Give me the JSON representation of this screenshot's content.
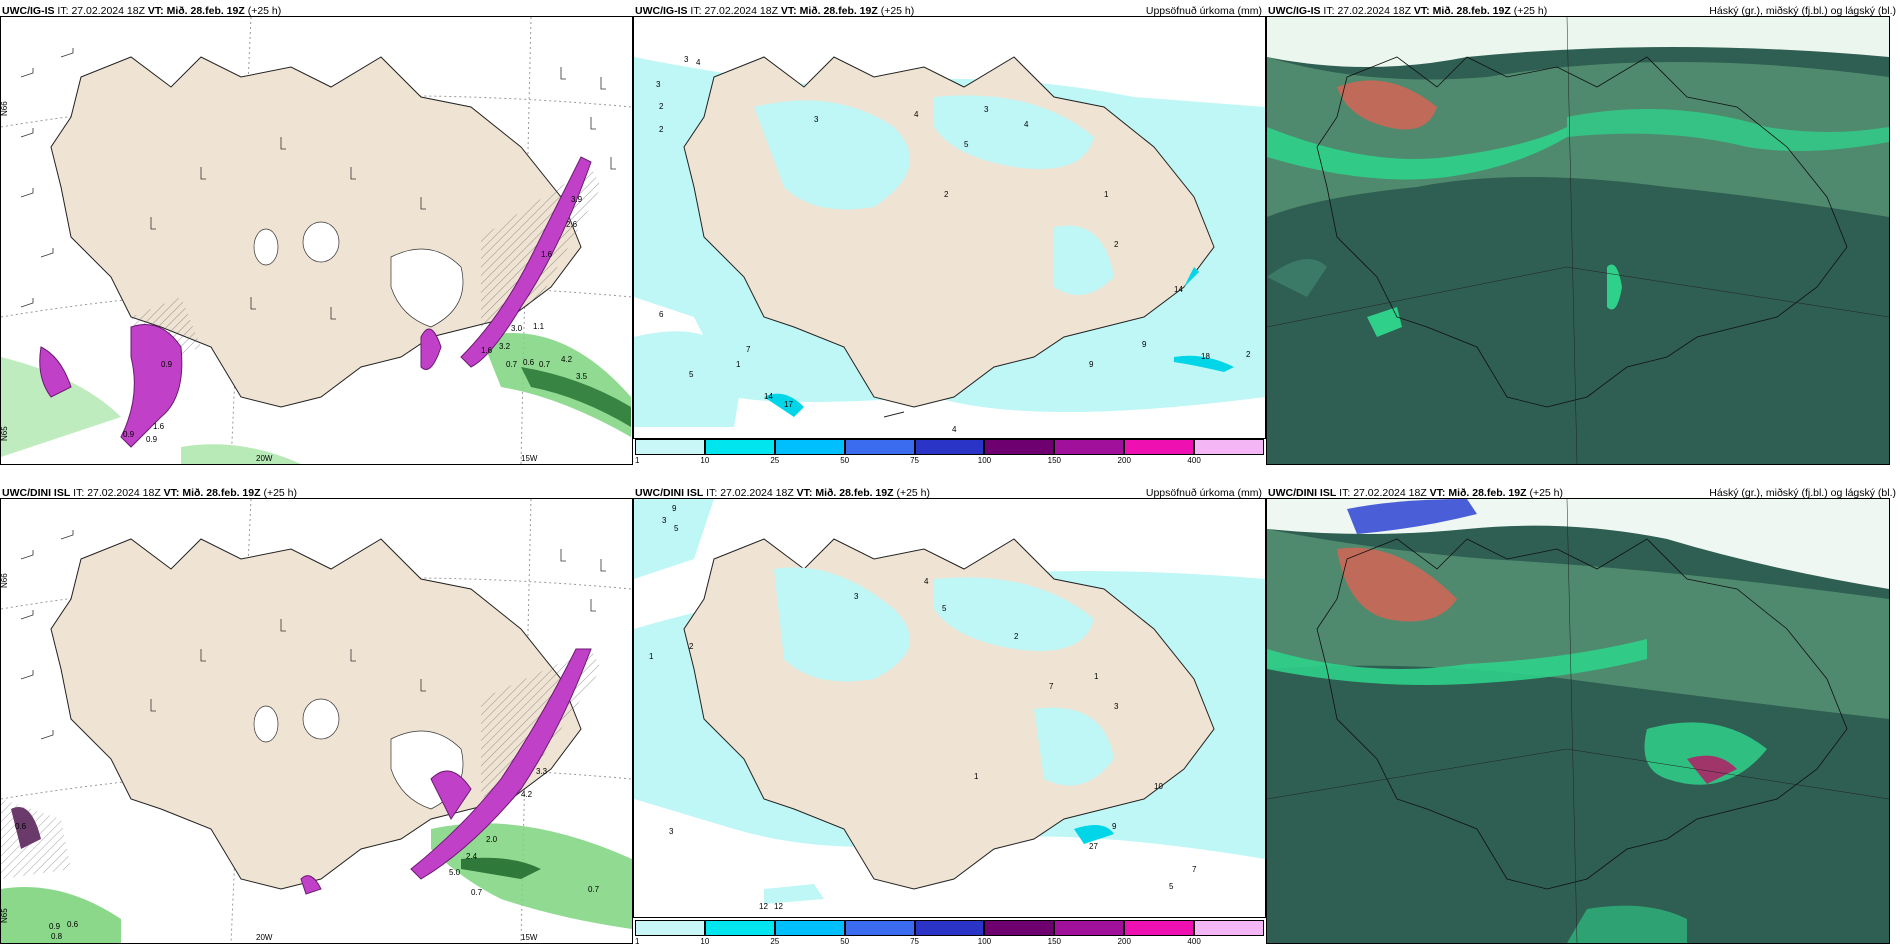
{
  "run": {
    "it_label": "IT:",
    "it_value": "27.02.2024 18Z",
    "vt_label": "VT:",
    "vt_value": "Mið. 28.feb. 19Z",
    "lead": "(+25 h)"
  },
  "rows": [
    {
      "model": "UWC/IG-IS",
      "panels": [
        {
          "type": "wind",
          "right_title": ""
        },
        {
          "type": "precip",
          "right_title": "Uppsöfnuð úrkoma (mm)"
        },
        {
          "type": "cloud",
          "right_title": "Háský (gr.), miðský (fj.bl.) og lágský (bl.)"
        }
      ],
      "wind_coords": {
        "lat1": "N66",
        "lat2": "N65",
        "lon1": "20W",
        "lon2": "15W"
      },
      "wind_values": [
        "3.0",
        "1.1",
        "1.6",
        "3.2",
        "0.6",
        "0.7",
        "4.2",
        "3.5",
        "0.9",
        "0.7",
        "0.9",
        "1.6",
        "2.6",
        "1.6",
        "0.9",
        "3.9"
      ],
      "precip_values": [
        "3",
        "4",
        "3",
        "2",
        "2",
        "3",
        "4",
        "5",
        "3",
        "4",
        "2",
        "1",
        "2",
        "7",
        "14",
        "17",
        "4",
        "6",
        "9",
        "14",
        "18",
        "2",
        "9",
        "5",
        "1"
      ]
    },
    {
      "model": "UWC/DINI ISL",
      "panels": [
        {
          "type": "wind",
          "right_title": ""
        },
        {
          "type": "precip",
          "right_title": "Uppsöfnuð úrkoma (mm)"
        },
        {
          "type": "cloud",
          "right_title": "Háský (gr.), miðský (fj.bl.) og lágský (bl.)"
        }
      ],
      "wind_coords": {
        "lat1": "N66",
        "lat2": "N65",
        "lon1": "20W",
        "lon2": "15W"
      },
      "wind_values": [
        "2.0",
        "2.4",
        "5.0",
        "0.7",
        "0.7",
        "3.3",
        "4.2",
        "0.9",
        "0.6",
        "0.8",
        "0.6"
      ],
      "precip_values": [
        "9",
        "3",
        "5",
        "1",
        "2",
        "3",
        "4",
        "5",
        "2",
        "1",
        "3",
        "7",
        "10",
        "9",
        "27",
        "7",
        "5",
        "3",
        "12",
        "12",
        "1"
      ]
    }
  ],
  "legend": {
    "ticks": [
      "1",
      "10",
      "25",
      "50",
      "75",
      "100",
      "150",
      "200",
      "400"
    ],
    "colors": [
      "#c9f7f7",
      "#00e5ee",
      "#00bfff",
      "#3b6cf0",
      "#2a35c8",
      "#6e0070",
      "#a0109a",
      "#ee10b0",
      "#f4b6f4"
    ]
  },
  "colors": {
    "land": "#efe3d3",
    "wind_pink": "#c040c8",
    "wind_green": "#7ed47e",
    "precip_cyan": "#bff6f6",
    "cloud_base": "#2f5e52",
    "cloud_green": "#2fd08a"
  }
}
